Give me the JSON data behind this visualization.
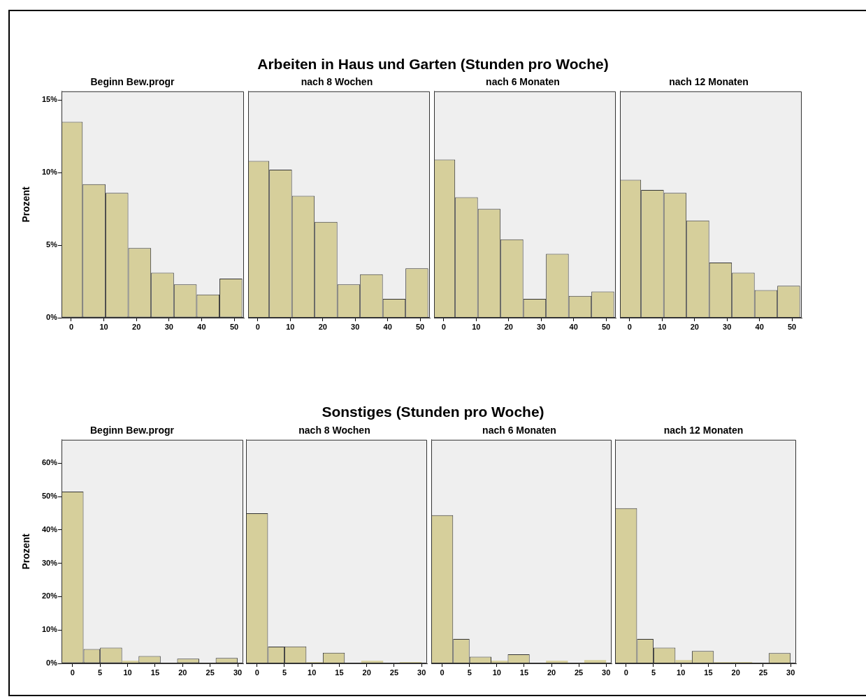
{
  "chart_data": [
    {
      "type": "histogram",
      "title": "Beginn Bew.progr",
      "ylabel": "Prozent",
      "annotations": [
        "Arbeiten in Haus und Garten (Stunden pro Woche)"
      ],
      "bins": [
        -3,
        3.5,
        10.5,
        17.5,
        24.5,
        31.5,
        38.5,
        45.5,
        52.5
      ],
      "values": [
        13.5,
        9.2,
        8.6,
        4.8,
        3.1,
        2.3,
        1.6,
        2.7
      ],
      "color": "#d6cf9b",
      "xlim": [
        -3,
        53
      ],
      "xticks": [
        0,
        10,
        20,
        30,
        40,
        50
      ],
      "ylim": [
        0,
        15.6
      ],
      "yticks": [
        {
          "value": 0,
          "label": "0%"
        },
        {
          "value": 5,
          "label": "5%"
        },
        {
          "value": 10,
          "label": "10%"
        },
        {
          "value": 15,
          "label": "15%"
        }
      ]
    },
    {
      "type": "histogram",
      "title": "nach 8 Wochen",
      "bins": [
        -3,
        3.5,
        10.5,
        17.5,
        24.5,
        31.5,
        38.5,
        45.5,
        52.5
      ],
      "values": [
        10.8,
        10.2,
        8.4,
        6.6,
        2.3,
        3.0,
        1.3,
        3.4
      ],
      "color": "#d6cf9b",
      "xlim": [
        -3,
        53
      ],
      "xticks": [
        0,
        10,
        20,
        30,
        40,
        50
      ],
      "ylim": [
        0,
        15.6
      ],
      "tick_labels": "x"
    },
    {
      "type": "histogram",
      "title": "nach 6 Monaten",
      "bins": [
        -3,
        3.5,
        10.5,
        17.5,
        24.5,
        31.5,
        38.5,
        45.5,
        52.5
      ],
      "values": [
        10.9,
        8.3,
        7.5,
        5.4,
        1.3,
        4.4,
        1.5,
        1.8
      ],
      "color": "#d6cf9b",
      "xlim": [
        -3,
        53
      ],
      "xticks": [
        0,
        10,
        20,
        30,
        40,
        50
      ],
      "ylim": [
        0,
        15.6
      ],
      "tick_labels": "x"
    },
    {
      "type": "histogram",
      "title": "nach 12 Monaten",
      "bins": [
        -3,
        3.5,
        10.5,
        17.5,
        24.5,
        31.5,
        38.5,
        45.5,
        52.5
      ],
      "values": [
        9.5,
        8.8,
        8.6,
        6.7,
        3.8,
        3.1,
        1.9,
        2.2
      ],
      "color": "#d6cf9b",
      "xlim": [
        -3,
        53
      ],
      "xticks": [
        0,
        10,
        20,
        30,
        40,
        50
      ],
      "ylim": [
        0,
        15.6
      ],
      "tick_labels": "x"
    },
    {
      "type": "histogram",
      "title": "Beginn Bew.progr",
      "ylabel": "Prozent",
      "annotations": [
        "Sonstiges (Stunden pro Woche)"
      ],
      "bins": [
        -2,
        2,
        5,
        9,
        12,
        16,
        19,
        23,
        26,
        30
      ],
      "values": [
        51.5,
        4.3,
        4.7,
        0.8,
        2.2,
        null,
        1.4,
        0,
        1.6
      ],
      "color": "#d6cf9b",
      "xlim": [
        -2,
        31
      ],
      "xticks": [
        0,
        5,
        10,
        15,
        20,
        25,
        30
      ],
      "ylim": [
        0,
        67
      ],
      "yticks": [
        {
          "value": 0,
          "label": "0%"
        },
        {
          "value": 10,
          "label": "10%"
        },
        {
          "value": 20,
          "label": "20%"
        },
        {
          "value": 30,
          "label": "30%"
        },
        {
          "value": 40,
          "label": "40%"
        },
        {
          "value": 50,
          "label": "50%"
        },
        {
          "value": 60,
          "label": "60%"
        }
      ]
    },
    {
      "type": "histogram",
      "title": "nach 8 Wochen",
      "bins": [
        -2,
        2,
        5,
        9,
        12,
        16,
        19,
        23,
        26,
        30
      ],
      "values": [
        45,
        5.0,
        5.1,
        0.4,
        3.2,
        0.2,
        0.8,
        0,
        0.4
      ],
      "color": "#d6cf9b",
      "xlim": [
        -2,
        31
      ],
      "xticks": [
        0,
        5,
        10,
        15,
        20,
        25,
        30
      ],
      "ylim": [
        0,
        67
      ],
      "tick_labels": "x"
    },
    {
      "type": "histogram",
      "title": "nach 6 Monaten",
      "bins": [
        -2,
        2,
        5,
        9,
        12,
        16,
        19,
        23,
        26,
        30
      ],
      "values": [
        44.4,
        7.3,
        2.0,
        0.8,
        2.7,
        0,
        0.8,
        null,
        1.0
      ],
      "color": "#d6cf9b",
      "xlim": [
        -2,
        31
      ],
      "xticks": [
        0,
        5,
        10,
        15,
        20,
        25,
        30
      ],
      "ylim": [
        0,
        67
      ],
      "tick_labels": "x"
    },
    {
      "type": "histogram",
      "title": "nach 12 Monaten",
      "bins": [
        -2,
        2,
        5,
        9,
        12,
        16,
        19,
        23,
        26,
        30
      ],
      "values": [
        46.5,
        7.3,
        4.7,
        1.0,
        3.7,
        0.4,
        0.4,
        0,
        3.1
      ],
      "color": "#d6cf9b",
      "xlim": [
        -2,
        31
      ],
      "xticks": [
        0,
        5,
        10,
        15,
        20,
        25,
        30
      ],
      "ylim": [
        0,
        67
      ],
      "tick_labels": "x"
    }
  ]
}
